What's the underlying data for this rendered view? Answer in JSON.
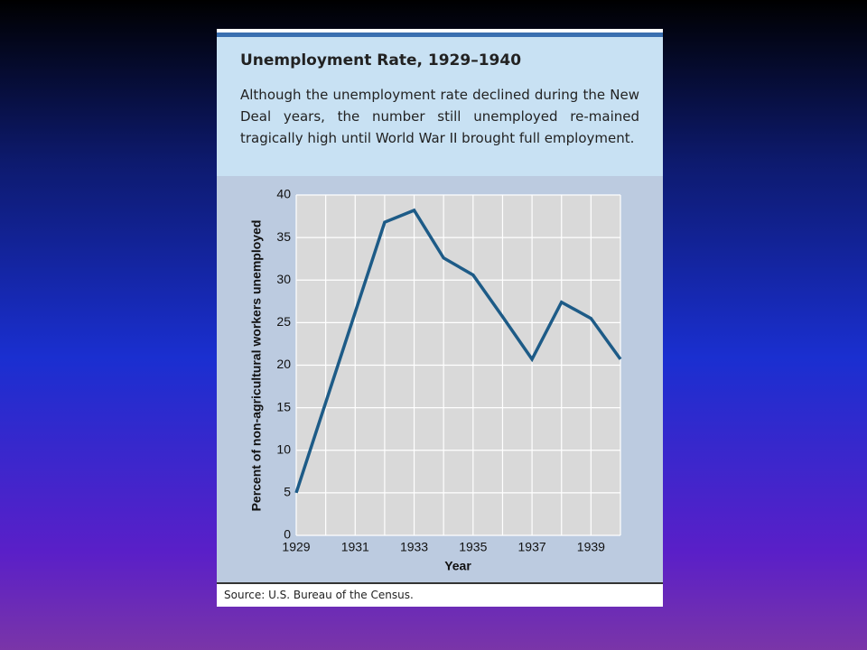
{
  "chart_data": {
    "type": "line",
    "title": "Unemployment Rate, 1929–1940",
    "subtitle": "Although the unemployment rate declined during the New Deal years, the number still unemployed re-mained tragically high until World War II brought full employment.",
    "x_label": "Year",
    "y_label": "Percent of non-agricultural workers unemployed",
    "source": "Source: U.S. Bureau of the Census.",
    "x": [
      1929,
      1930,
      1931,
      1932,
      1933,
      1934,
      1935,
      1936,
      1937,
      1938,
      1939,
      1940
    ],
    "series": [
      {
        "name": "Unemployment rate",
        "color": "#1d5b87",
        "values": [
          5,
          15.6,
          26.2,
          36.8,
          38.2,
          32.6,
          30.6,
          25.7,
          20.7,
          27.4,
          25.5,
          20.7
        ]
      }
    ],
    "xlim": [
      1929,
      1940
    ],
    "xticks": [
      1929,
      1931,
      1933,
      1935,
      1937,
      1939
    ],
    "ylim": [
      0,
      40
    ],
    "yticks": [
      0,
      5,
      10,
      15,
      20,
      25,
      30,
      35,
      40
    ],
    "grid": true
  }
}
